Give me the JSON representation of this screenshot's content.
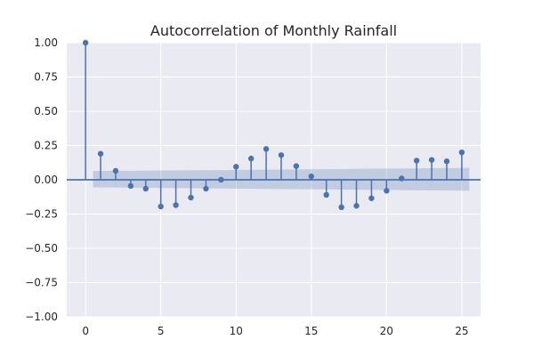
{
  "chart_data": {
    "type": "stem",
    "title": "Autocorrelation of Monthly Rainfall",
    "xlabel": "",
    "ylabel": "",
    "xlim": [
      -1.25,
      26.25
    ],
    "ylim": [
      -1.0,
      1.0
    ],
    "x_ticks": [
      0,
      5,
      10,
      15,
      20,
      25
    ],
    "y_ticks": [
      -1.0,
      -0.75,
      -0.5,
      -0.25,
      0.0,
      0.25,
      0.5,
      0.75,
      1.0
    ],
    "x_tick_labels": [
      "0",
      "5",
      "10",
      "15",
      "20",
      "25"
    ],
    "y_tick_labels": [
      "−1.00",
      "−0.75",
      "−0.50",
      "−0.25",
      "0.00",
      "0.25",
      "0.50",
      "0.75",
      "1.00"
    ],
    "grid": true,
    "lags": [
      0,
      1,
      2,
      3,
      4,
      5,
      6,
      7,
      8,
      9,
      10,
      11,
      12,
      13,
      14,
      15,
      16,
      17,
      18,
      19,
      20,
      21,
      22,
      23,
      24,
      25
    ],
    "acf": [
      1.0,
      0.19,
      0.065,
      -0.045,
      -0.065,
      -0.195,
      -0.185,
      -0.13,
      -0.065,
      0.0,
      0.095,
      0.155,
      0.225,
      0.18,
      0.1,
      0.025,
      -0.11,
      -0.2,
      -0.19,
      -0.135,
      -0.08,
      0.01,
      0.14,
      0.145,
      0.135,
      0.2
    ],
    "confidence_band": {
      "x": [
        0.5,
        1.5,
        2.5,
        3.5,
        4.5,
        5.5,
        6.5,
        7.5,
        8.5,
        9.5,
        10.5,
        11.5,
        12.5,
        13.5,
        14.5,
        15.5,
        16.5,
        17.5,
        18.5,
        19.5,
        20.5,
        21.5,
        22.5,
        23.5,
        24.5,
        25.5
      ],
      "upper": [
        0.065,
        0.065,
        0.066,
        0.066,
        0.067,
        0.068,
        0.069,
        0.07,
        0.07,
        0.071,
        0.072,
        0.073,
        0.074,
        0.075,
        0.076,
        0.077,
        0.078,
        0.079,
        0.08,
        0.081,
        0.082,
        0.083,
        0.084,
        0.085,
        0.086,
        0.087
      ],
      "lower": [
        -0.055,
        -0.056,
        -0.057,
        -0.058,
        -0.059,
        -0.06,
        -0.061,
        -0.062,
        -0.063,
        -0.064,
        -0.065,
        -0.066,
        -0.067,
        -0.068,
        -0.069,
        -0.07,
        -0.071,
        -0.072,
        -0.073,
        -0.074,
        -0.075,
        -0.076,
        -0.077,
        -0.078,
        -0.079,
        -0.08
      ]
    },
    "colors": {
      "plot_background": "#eaeaf2",
      "grid": "#ffffff",
      "stem": "#4c72b0",
      "band": "#4c72b0",
      "text": "#262626"
    }
  }
}
